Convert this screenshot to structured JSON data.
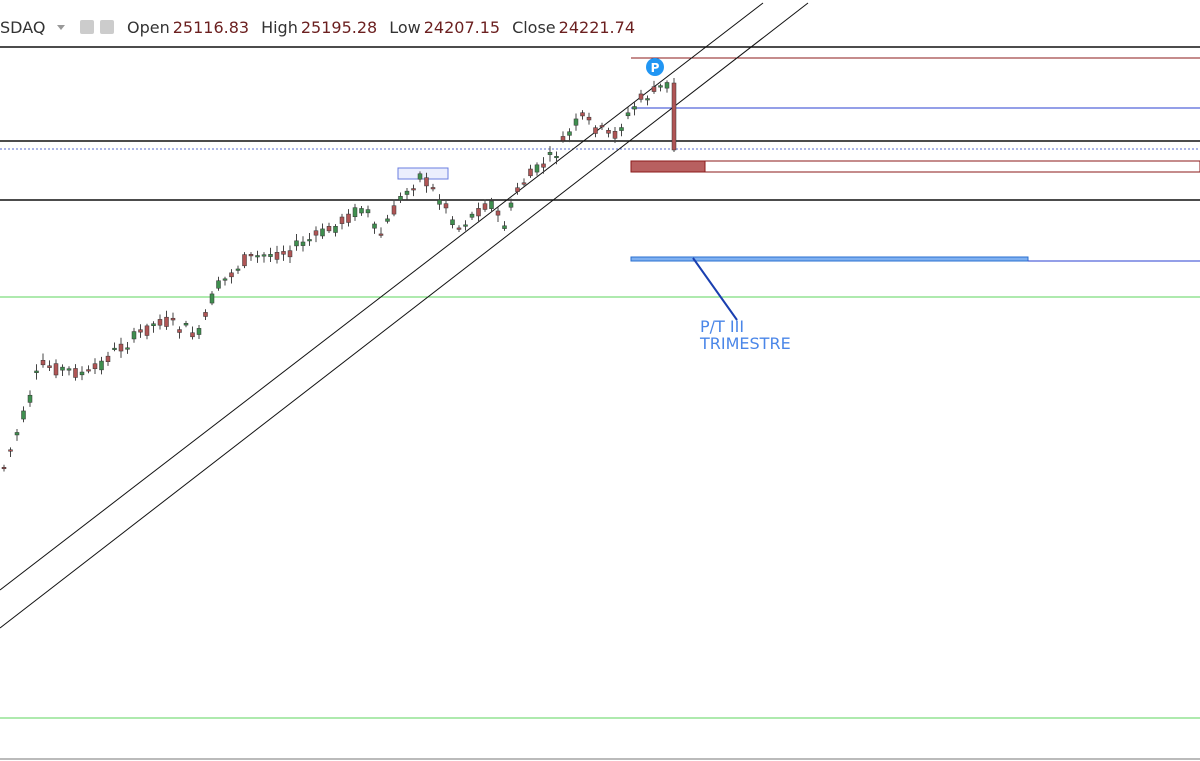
{
  "header": {
    "symbol": "SDAQ",
    "open_label": "Open",
    "open": 25116.83,
    "high_label": "High",
    "high": 25195.28,
    "low_label": "Low",
    "low": 24207.15,
    "close_label": "Close",
    "close": 24221.74
  },
  "annotations": {
    "marker": "P",
    "note_line1": "P/T III",
    "note_line2": "TRIMESTRE"
  }
}
